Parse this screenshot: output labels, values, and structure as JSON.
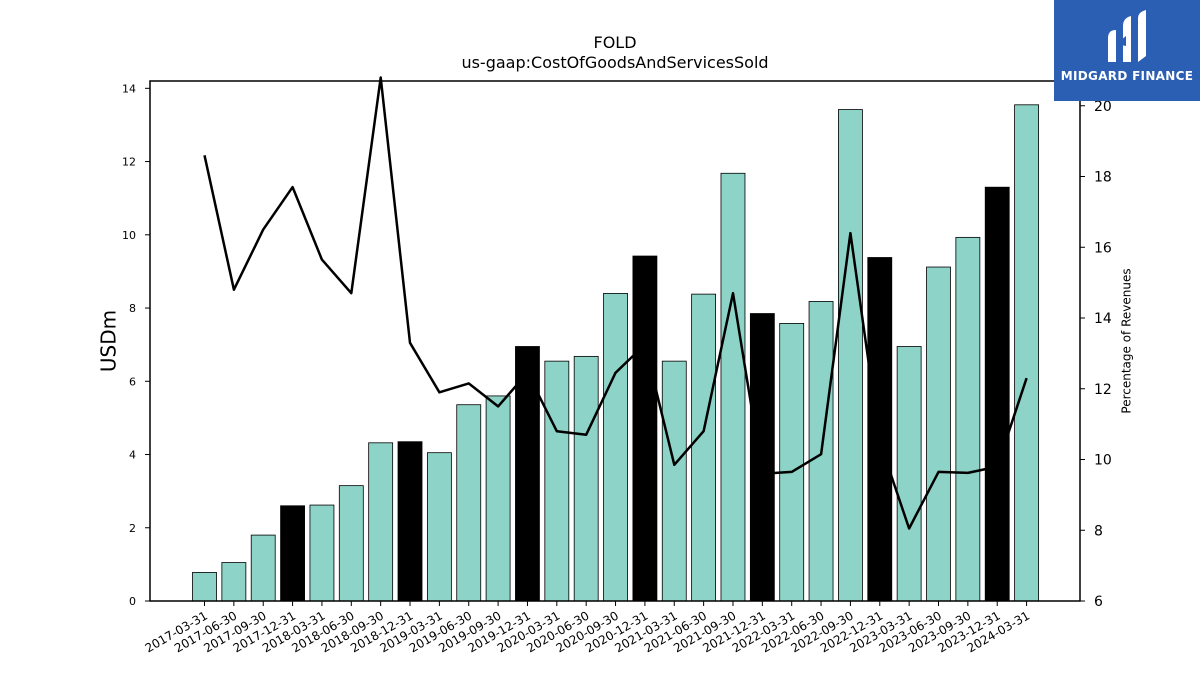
{
  "logo": {
    "text": "MIDGARD FINANCE",
    "background": "#2b5fb3"
  },
  "chart_data": {
    "type": "bar",
    "title": "FOLD",
    "subtitle": "us-gaap:CostOfGoodsAndServicesSold",
    "ylabel": "USDm",
    "y2label": "Percentage of Revenues",
    "ylim": [
      0,
      14.2
    ],
    "y2lim": [
      6,
      20.7
    ],
    "yticks": [
      0,
      2,
      4,
      6,
      8,
      10,
      12,
      14
    ],
    "y2ticks": [
      6,
      8,
      10,
      12,
      14,
      16,
      18,
      20
    ],
    "categories": [
      "2017-03-31",
      "2017-06-30",
      "2017-09-30",
      "2017-12-31",
      "2018-03-31",
      "2018-06-30",
      "2018-09-30",
      "2018-12-31",
      "2019-03-31",
      "2019-06-30",
      "2019-09-30",
      "2019-12-31",
      "2020-03-31",
      "2020-06-30",
      "2020-09-30",
      "2020-12-31",
      "2021-03-31",
      "2021-06-30",
      "2021-09-30",
      "2021-12-31",
      "2022-03-31",
      "2022-06-30",
      "2022-09-30",
      "2022-12-31",
      "2023-03-31",
      "2023-06-30",
      "2023-09-30",
      "2023-12-31",
      "2024-03-31"
    ],
    "series": [
      {
        "type": "bar",
        "values": [
          0.78,
          1.05,
          1.8,
          2.6,
          2.62,
          3.15,
          4.32,
          4.35,
          4.05,
          5.36,
          5.6,
          6.95,
          6.55,
          6.68,
          8.4,
          9.42,
          6.55,
          8.38,
          11.68,
          7.85,
          7.58,
          8.18,
          13.42,
          9.38,
          6.95,
          9.12,
          9.93,
          11.3,
          13.55
        ],
        "highlight_categories": [
          "2017-12-31",
          "2018-12-31",
          "2019-12-31",
          "2020-12-31",
          "2021-12-31",
          "2022-12-31",
          "2023-12-31"
        ]
      },
      {
        "type": "line",
        "axis": "right",
        "values": [
          18.6,
          14.8,
          16.5,
          17.7,
          15.65,
          14.7,
          20.8,
          13.3,
          11.9,
          12.15,
          11.5,
          12.45,
          10.8,
          10.7,
          12.45,
          13.25,
          9.85,
          10.8,
          14.7,
          9.6,
          9.65,
          10.15,
          16.4,
          10.5,
          8.05,
          9.65,
          9.62,
          9.8,
          12.3
        ]
      }
    ],
    "colors": {
      "bar": "#8dd3c7",
      "highlight_bar": "#000000",
      "line": "#000000"
    }
  }
}
